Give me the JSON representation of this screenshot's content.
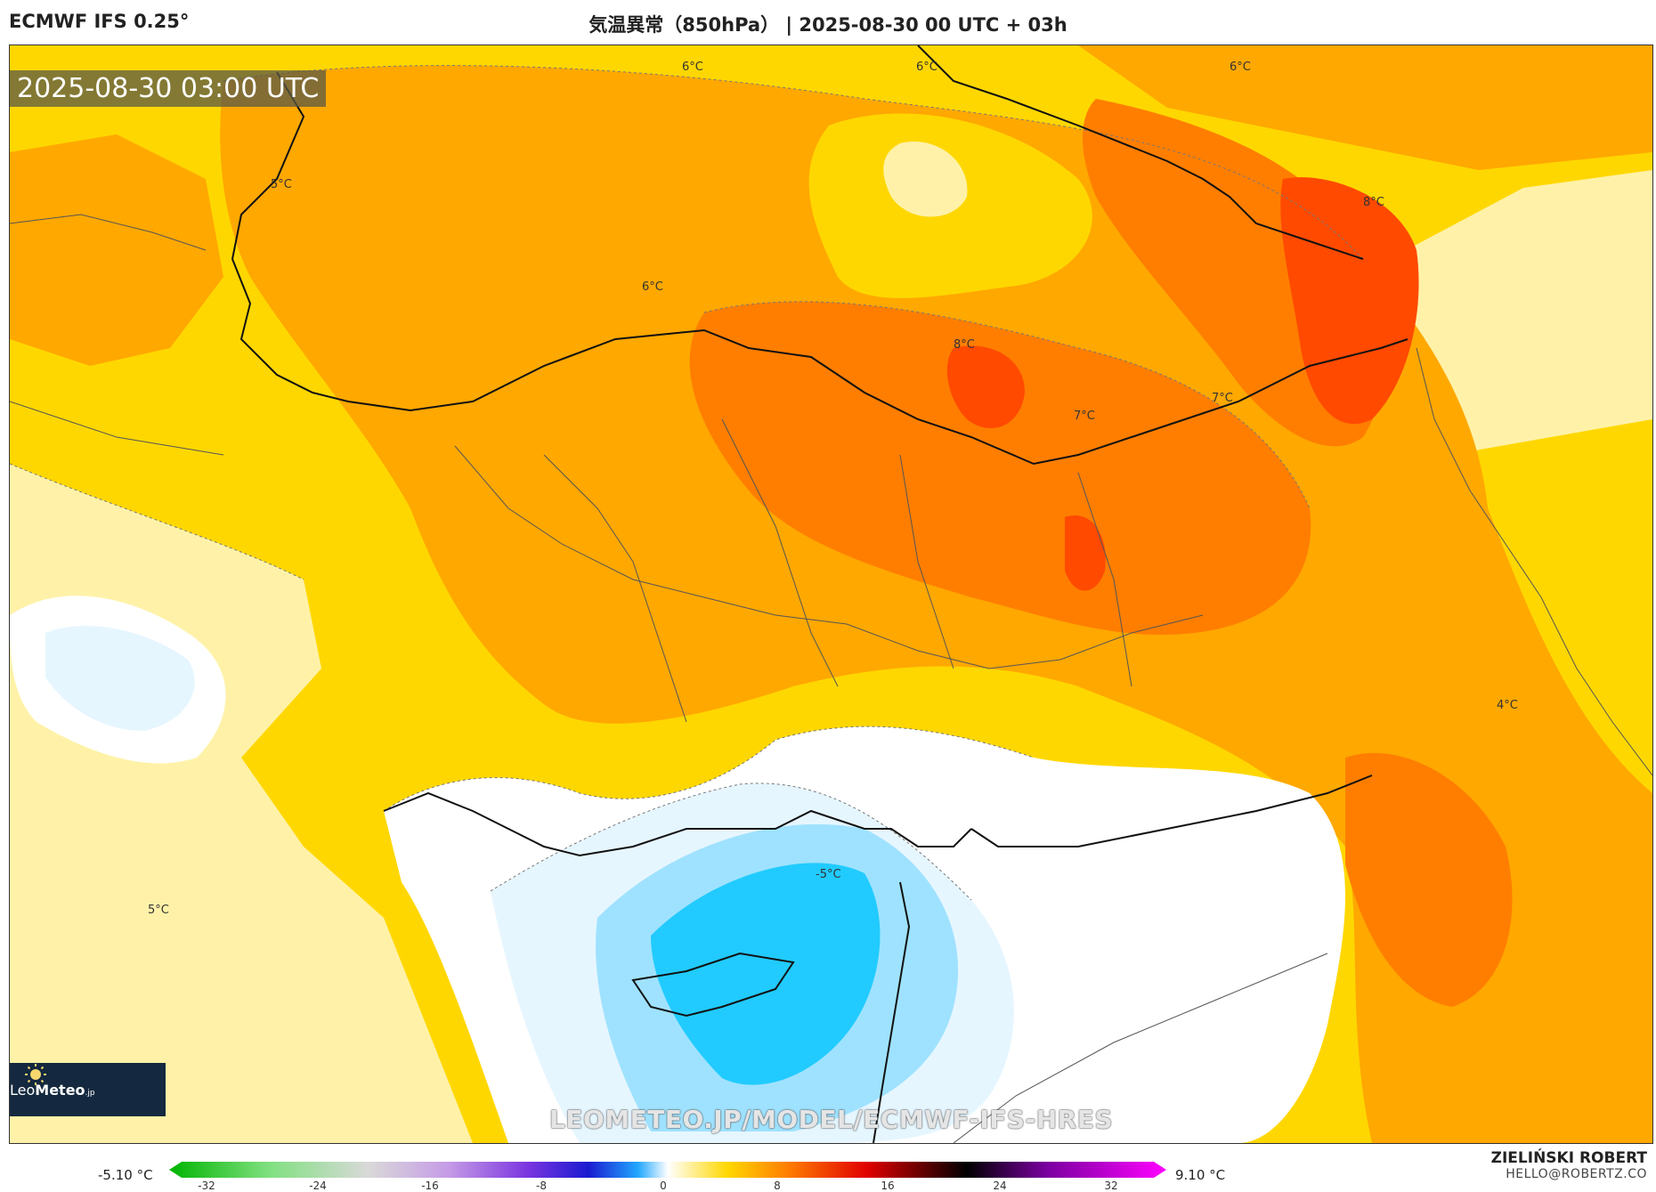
{
  "header": {
    "model": "ECMWF IFS 0.25°",
    "title": "気温異常（850hPa） | 2025-08-30 00 UTC + 03h"
  },
  "map": {
    "timestamp": "2025-08-30 03:00 UTC",
    "watermark": "LEOMETEO.JP/MODEL/ECMWF-IFS-HRES",
    "contour_labels": [
      "6°C",
      "6°C",
      "6°C",
      "5°C",
      "6°C",
      "8°C",
      "8°C",
      "7°C",
      "7°C",
      "4°C",
      "-5°C",
      "5°C"
    ]
  },
  "logo": {
    "text_a": "Leo",
    "text_b": "Meteo",
    "text_c": ".jp"
  },
  "colorbar": {
    "min_label": "-5.10 °C",
    "max_label": "9.10 °C",
    "ticks": [
      "-32",
      "-24",
      "-16",
      "-8",
      "0",
      "8",
      "16",
      "24",
      "32"
    ]
  },
  "credit": {
    "name": "ZIELIŃSKI ROBERT",
    "email": "HELLO@ROBERTZ.CO"
  },
  "colors": {
    "warm_light": "#fff2a8",
    "warm_yellow": "#ffd700",
    "warm_orange": "#ffa800",
    "warm_deep": "#ff7e00",
    "warm_red": "#ff4a00",
    "cold_light": "#e6f6ff",
    "cold_mid": "#9fe2ff",
    "cold_deep": "#21cbff"
  }
}
